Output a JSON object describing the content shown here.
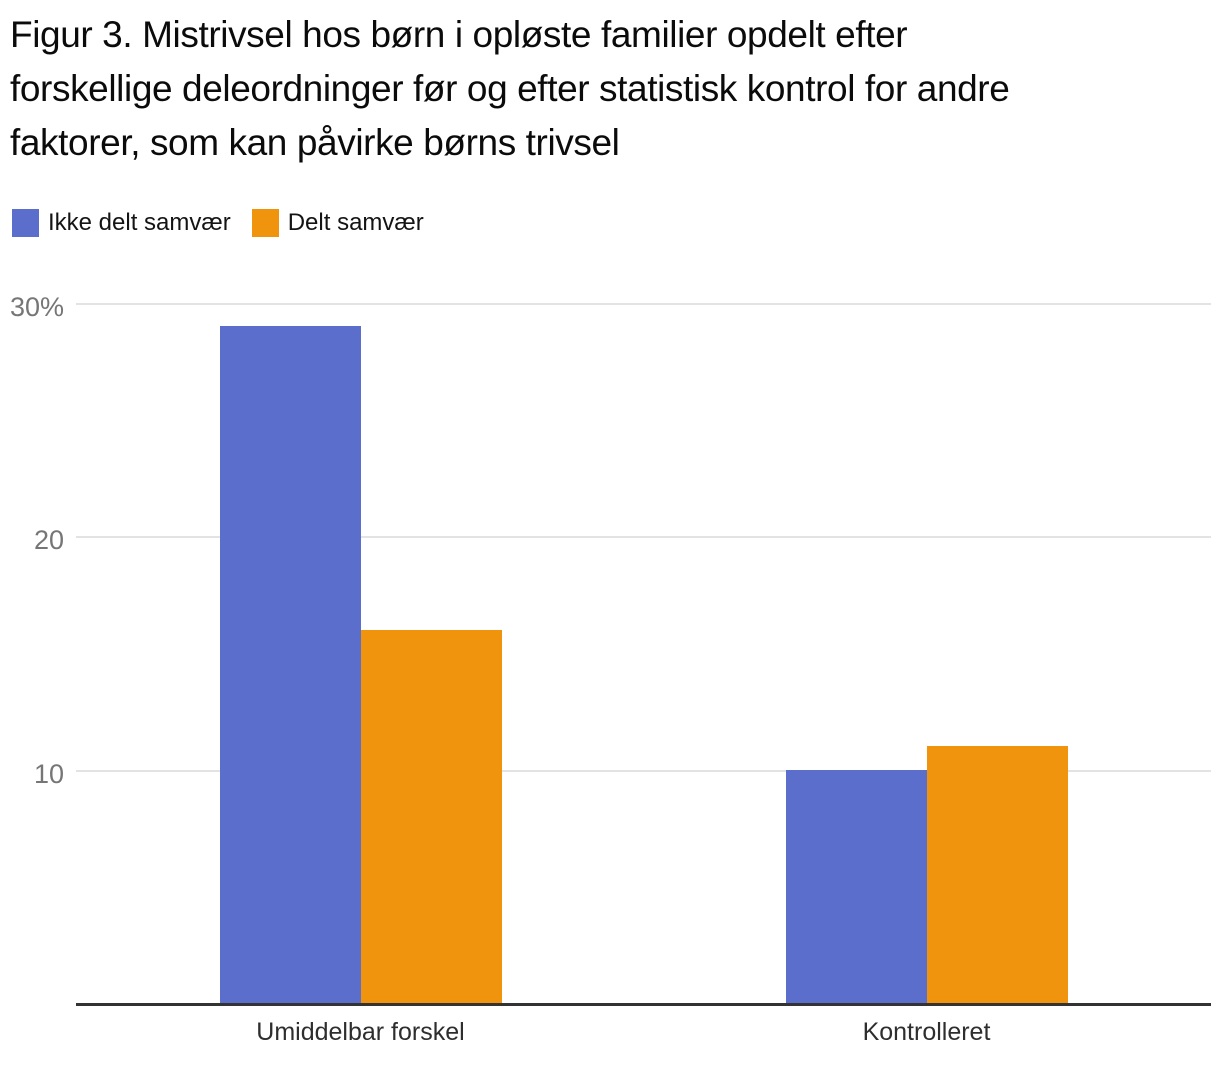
{
  "chart_data": {
    "type": "bar",
    "title": "Figur 3. Mistrivsel hos børn i opløste familier opdelt efter\nforskellige deleordninger før og efter statistisk kontrol for andre\nfaktorer, som kan påvirke børns trivsel",
    "categories": [
      "Umiddelbar forskel",
      "Kontrolleret"
    ],
    "series": [
      {
        "name": "Ikke delt samvær",
        "color": "#5b6ecb",
        "values": [
          29,
          10
        ]
      },
      {
        "name": "Delt samvær",
        "color": "#f0930d",
        "values": [
          16,
          11
        ]
      }
    ],
    "xlabel": "",
    "ylabel": "",
    "ylim": [
      0,
      30
    ],
    "yticks": [
      {
        "value": 30,
        "label": "30%"
      },
      {
        "value": 20,
        "label": "20"
      },
      {
        "value": 10,
        "label": "10"
      }
    ],
    "grid": true,
    "legend_position": "top-left"
  },
  "colors": {
    "axis_line": "#333333",
    "gridline": "#e3e3e3",
    "y_tick_text": "#767676",
    "x_tick_text": "#2e2e2e",
    "title_text": "#0b0b0b",
    "background": "#ffffff"
  }
}
